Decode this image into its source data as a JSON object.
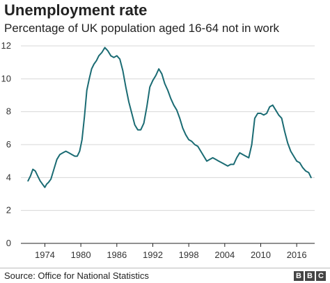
{
  "header": {
    "title": "Unemployment rate",
    "subtitle": "Percentage of UK population aged 16-64 not in work"
  },
  "footer": {
    "source": "Source: Office for National Statistics",
    "logo_letters": [
      "B",
      "B",
      "C"
    ]
  },
  "colors": {
    "line": "#1a6b73",
    "grid": "#d7d7d7",
    "axis": "#222222"
  },
  "chart_data": {
    "type": "line",
    "title": "Unemployment rate",
    "subtitle": "Percentage of UK population aged 16-64 not in work",
    "xlabel": "",
    "ylabel": "",
    "xlim": [
      1970,
      2019
    ],
    "ylim": [
      0,
      12
    ],
    "y_ticks": [
      0,
      2,
      4,
      6,
      8,
      10,
      12
    ],
    "x_ticks": [
      1974,
      1980,
      1986,
      1992,
      1998,
      2004,
      2010,
      2016
    ],
    "grid": "horizontal",
    "legend": "none",
    "series": [
      {
        "x": [
          1971.2,
          1971.6,
          1972.0,
          1972.4,
          1972.8,
          1973.2,
          1973.6,
          1974.0,
          1974.3,
          1974.6,
          1975.0,
          1975.5,
          1976.0,
          1976.5,
          1977.0,
          1977.5,
          1978.0,
          1978.5,
          1979.0,
          1979.4,
          1979.8,
          1980.2,
          1980.6,
          1981.0,
          1981.4,
          1981.8,
          1982.2,
          1982.6,
          1983.0,
          1983.5,
          1984.0,
          1984.5,
          1985.0,
          1985.5,
          1986.0,
          1986.5,
          1987.0,
          1987.5,
          1988.0,
          1988.5,
          1989.0,
          1989.5,
          1990.0,
          1990.5,
          1991.0,
          1991.5,
          1992.0,
          1992.5,
          1993.0,
          1993.5,
          1994.0,
          1994.5,
          1995.0,
          1995.5,
          1996.0,
          1996.5,
          1997.0,
          1997.5,
          1998.0,
          1998.5,
          1999.0,
          1999.5,
          2000.0,
          2000.5,
          2001.0,
          2001.5,
          2002.0,
          2002.5,
          2003.0,
          2003.5,
          2004.0,
          2004.5,
          2005.0,
          2005.5,
          2006.0,
          2006.5,
          2007.0,
          2007.5,
          2008.0,
          2008.5,
          2009.0,
          2009.5,
          2010.0,
          2010.5,
          2011.0,
          2011.5,
          2012.0,
          2012.5,
          2013.0,
          2013.5,
          2014.0,
          2014.5,
          2015.0,
          2015.5,
          2016.0,
          2016.5,
          2017.0,
          2017.5,
          2018.0,
          2018.4
        ],
        "values": [
          3.8,
          4.1,
          4.5,
          4.4,
          4.1,
          3.8,
          3.6,
          3.4,
          3.6,
          3.7,
          3.9,
          4.5,
          5.1,
          5.4,
          5.5,
          5.6,
          5.5,
          5.4,
          5.3,
          5.3,
          5.6,
          6.3,
          7.7,
          9.3,
          10.0,
          10.6,
          10.9,
          11.1,
          11.4,
          11.6,
          11.9,
          11.7,
          11.4,
          11.3,
          11.4,
          11.2,
          10.5,
          9.5,
          8.6,
          7.9,
          7.2,
          6.9,
          6.9,
          7.3,
          8.3,
          9.5,
          9.9,
          10.2,
          10.6,
          10.3,
          9.7,
          9.3,
          8.8,
          8.4,
          8.1,
          7.6,
          7.0,
          6.6,
          6.3,
          6.2,
          6.0,
          5.9,
          5.6,
          5.3,
          5.0,
          5.1,
          5.2,
          5.1,
          5.0,
          4.9,
          4.8,
          4.7,
          4.8,
          4.8,
          5.2,
          5.5,
          5.4,
          5.3,
          5.2,
          6.0,
          7.6,
          7.9,
          7.9,
          7.8,
          7.9,
          8.3,
          8.4,
          8.1,
          7.8,
          7.6,
          6.8,
          6.1,
          5.6,
          5.3,
          5.0,
          4.9,
          4.6,
          4.4,
          4.3,
          4.0
        ]
      }
    ]
  }
}
